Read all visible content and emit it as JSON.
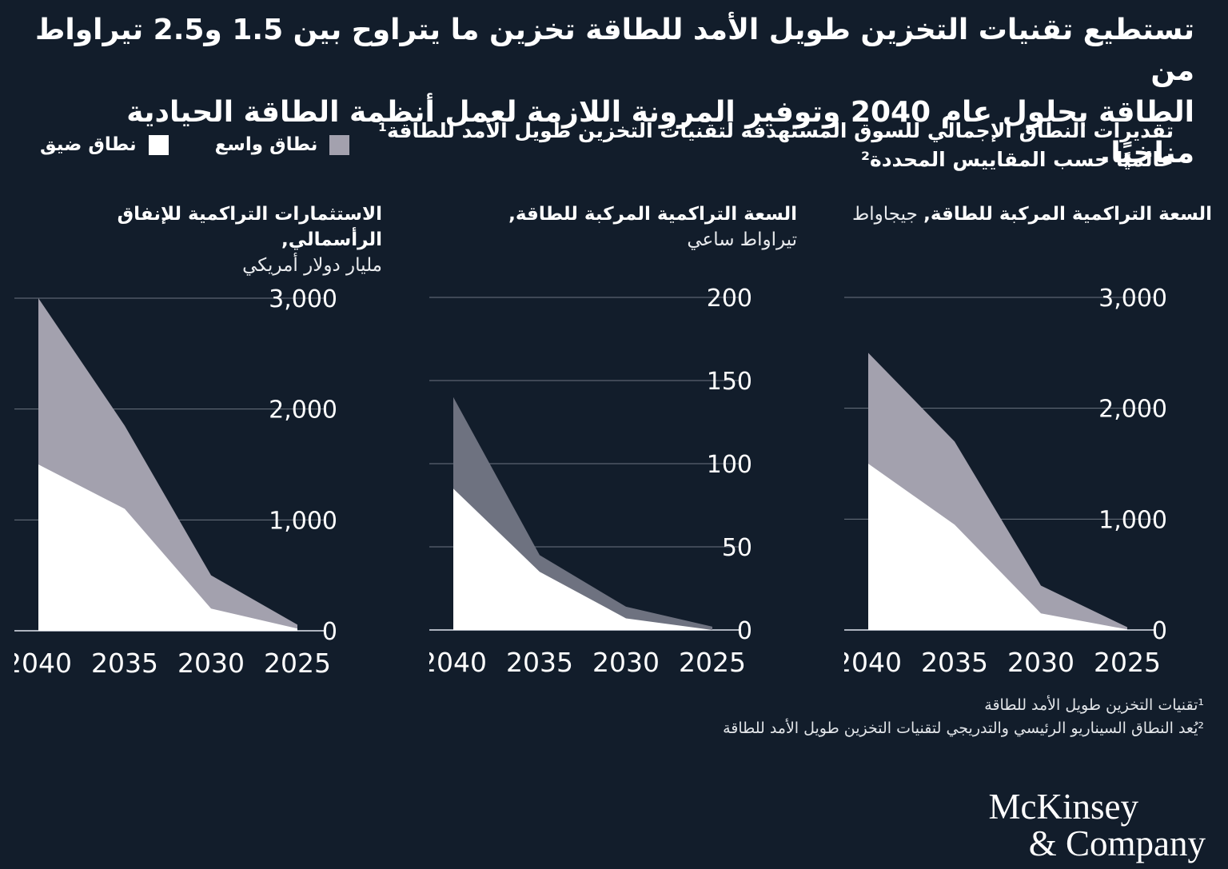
{
  "page": {
    "background": "#121d2b",
    "text_color": "#ffffff"
  },
  "title_lines": [
    "تستطيع تقنيات التخزين طويل الأمد للطاقة تخزين ما يتراوح بين 1.5 و2.5 تيراواط من",
    "الطاقة بحلول عام 2040 وتوفير المرونة اللازمة لعمل أنظمة الطاقة الحيادية مناخيًا."
  ],
  "subtitle_lines": [
    "تقديرات النطاق الإجمالي للسوق المستهدفة لتقنيات التخزين طويل الأمد للطاقة¹",
    "عالميًا حسب المقاييس المحددة²"
  ],
  "legend": {
    "items": [
      {
        "label": "نطاق واسع",
        "color": "#a3a1ae"
      },
      {
        "label": "نطاق ضيق",
        "color": "#ffffff"
      }
    ]
  },
  "chart_data": [
    {
      "type": "area",
      "position": "right",
      "title_bold": "السعة التراكمية المركبة للطاقة,",
      "unit": "جيجاواط",
      "unit_on_new_line": false,
      "categories": [
        "2040",
        "2035",
        "2030",
        "2025"
      ],
      "ymax": 3000,
      "yticks": [
        {
          "v": 3000,
          "label": "3,000"
        },
        {
          "v": 2000,
          "label": "2,000"
        },
        {
          "v": 1000,
          "label": "1,000"
        },
        {
          "v": 0,
          "label": "0"
        }
      ],
      "series": [
        {
          "name": "نطاق واسع",
          "values": [
            2500,
            1700,
            400,
            25
          ],
          "color": "#a3a1ae"
        },
        {
          "name": "نطاق ضيق",
          "values": [
            1500,
            950,
            150,
            5
          ],
          "color": "#ffffff"
        }
      ]
    },
    {
      "type": "area",
      "position": "middle",
      "title_bold": "السعة التراكمية المركبة للطاقة,",
      "unit": "تيراواط ساعي",
      "unit_on_new_line": true,
      "categories": [
        "2040",
        "2035",
        "2030",
        "2025"
      ],
      "ymax": 200,
      "yticks": [
        {
          "v": 200,
          "label": "200"
        },
        {
          "v": 150,
          "label": "150"
        },
        {
          "v": 100,
          "label": "100"
        },
        {
          "v": 50,
          "label": "50"
        },
        {
          "v": 0,
          "label": "0"
        }
      ],
      "series": [
        {
          "name": "نطاق واسع",
          "values": [
            140,
            45,
            14,
            2
          ],
          "color": "#6e7280"
        },
        {
          "name": "نطاق ضيق",
          "values": [
            85,
            35,
            7,
            0
          ],
          "color": "#ffffff"
        }
      ]
    },
    {
      "type": "area",
      "position": "left",
      "title_bold": "الاستثمارات التراكمية للإنفاق الرأسمالي,",
      "unit": "مليار دولار أمريكي",
      "unit_on_new_line": true,
      "categories": [
        "2040",
        "2035",
        "2030",
        "2025"
      ],
      "ymax": 3000,
      "yticks": [
        {
          "v": 3000,
          "label": "3,000"
        },
        {
          "v": 2000,
          "label": "2,000"
        },
        {
          "v": 1000,
          "label": "1,000"
        },
        {
          "v": 0,
          "label": "0"
        }
      ],
      "series": [
        {
          "name": "نطاق واسع",
          "values": [
            3000,
            1850,
            500,
            55
          ],
          "color": "#a3a1ae"
        },
        {
          "name": "نطاق ضيق",
          "values": [
            1500,
            1100,
            200,
            20
          ],
          "color": "#ffffff"
        }
      ]
    }
  ],
  "footnotes": [
    "¹تقنيات التخزين طويل الأمد للطاقة",
    "²يُعد النطاق السيناريو الرئيسي والتدريجي لتقنيات التخزين طويل الأمد للطاقة"
  ],
  "logo": {
    "line1": "McKinsey",
    "line2": "& Company"
  }
}
